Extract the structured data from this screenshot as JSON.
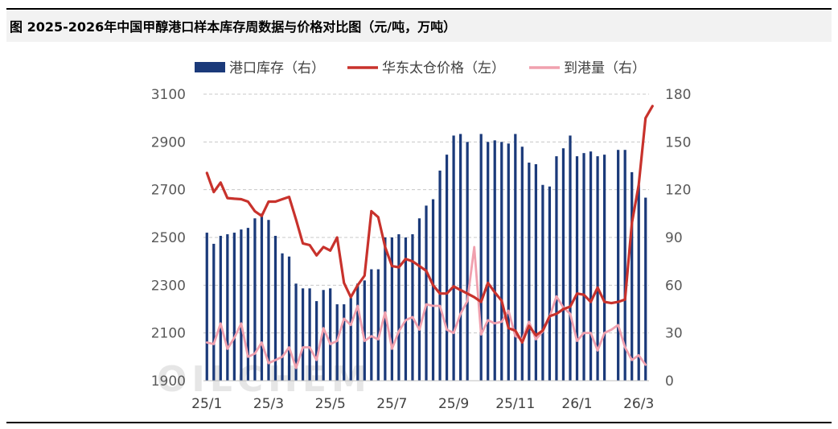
{
  "title": "图  2025-2026年中国甲醇港口样本库存周数据与价格对比图（元/吨，万吨）",
  "watermark": "OILCHEM",
  "chart_data": {
    "type": "bar+line",
    "x_ticks": [
      "25/1",
      "25/3",
      "25/5",
      "25/7",
      "25/9",
      "25/11",
      "26/1",
      "26/3"
    ],
    "x_tick_index": [
      0,
      9,
      18,
      27,
      36,
      45,
      54,
      63
    ],
    "left_axis": {
      "ticks": [
        1900,
        2100,
        2300,
        2500,
        2700,
        2900,
        3100
      ],
      "ylim": [
        1900,
        3100
      ]
    },
    "right_axis": {
      "ticks": [
        0,
        30,
        60,
        90,
        120,
        150,
        180
      ],
      "ylim": [
        0,
        180
      ]
    },
    "legend_position": "top",
    "grid": "horizontal dashed",
    "series": [
      {
        "name": "港口库存（右）",
        "type": "bar",
        "axis": "right",
        "color": "#1b3a7a",
        "values": [
          93,
          86,
          91,
          92,
          93,
          95,
          96,
          102,
          105,
          101,
          91,
          80,
          78,
          61,
          58,
          58,
          50,
          57,
          58,
          48,
          48,
          52,
          61,
          63,
          70,
          70,
          90,
          90,
          92,
          90,
          92,
          102,
          110,
          114,
          132,
          142,
          154,
          155,
          150,
          null,
          155,
          150,
          151,
          150,
          149,
          155,
          147,
          137,
          136,
          123,
          122,
          141,
          146,
          154,
          141,
          143,
          144,
          141,
          142,
          null,
          145,
          145,
          131,
          123,
          115
        ]
      },
      {
        "name": "华东太仓价格（左）",
        "type": "line",
        "axis": "left",
        "color": "#c8322c",
        "values": [
          2770,
          2690,
          2730,
          2665,
          2662,
          2660,
          2650,
          2610,
          2590,
          2650,
          2650,
          2660,
          2670,
          2575,
          2475,
          2468,
          2425,
          2460,
          2445,
          2500,
          2310,
          2250,
          2300,
          2340,
          2610,
          2585,
          2460,
          2380,
          2375,
          2410,
          2400,
          2380,
          2360,
          2300,
          2265,
          2265,
          2295,
          2280,
          2265,
          2250,
          2230,
          2310,
          2270,
          2235,
          2120,
          2110,
          2060,
          2130,
          2090,
          2110,
          2170,
          2180,
          2200,
          2210,
          2265,
          2260,
          2230,
          2290,
          2230,
          2225,
          2230,
          2240,
          2560,
          2720,
          3000,
          3050
        ]
      },
      {
        "name": "到港量（右）",
        "type": "line",
        "axis": "right",
        "color": "#f0a0ae",
        "values": [
          24,
          23,
          36,
          20,
          27,
          36,
          15,
          17,
          24,
          11,
          13,
          15,
          21,
          8,
          21,
          21,
          13,
          33,
          23,
          25,
          39,
          35,
          47,
          25,
          28,
          26,
          43,
          20,
          31,
          38,
          40,
          32,
          48,
          47,
          47,
          32,
          30,
          42,
          50,
          84,
          29,
          38,
          36,
          37,
          44,
          28,
          26,
          37,
          26,
          31,
          40,
          53,
          46,
          42,
          25,
          30,
          30,
          19,
          30,
          32,
          35,
          21,
          13,
          16,
          10
        ]
      }
    ]
  }
}
